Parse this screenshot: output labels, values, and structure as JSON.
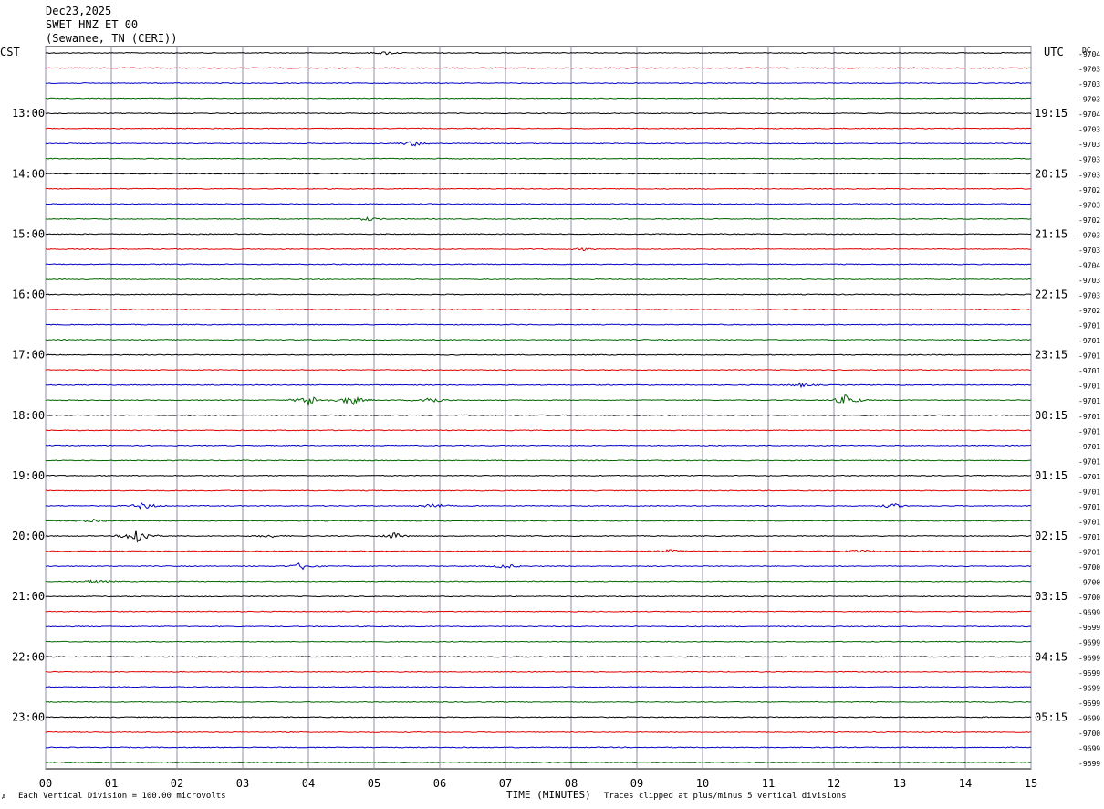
{
  "header": {
    "date": "Dec23,2025",
    "station": "SWET HNZ ET 00",
    "location": "(Sewanee, TN (CERI))"
  },
  "chart_data": {
    "type": "line",
    "left_zone_label": "CST",
    "right_zone_label": "UTC",
    "dc_header": "DC",
    "xlabel": "TIME (MINUTES)",
    "x_ticks": [
      "00",
      "01",
      "02",
      "03",
      "04",
      "05",
      "06",
      "07",
      "08",
      "09",
      "10",
      "11",
      "12",
      "13",
      "14",
      "15"
    ],
    "xlim": [
      0,
      15
    ],
    "grid": true,
    "trace_colors": [
      "#000000",
      "#e00000",
      "#0000c8",
      "#006400"
    ],
    "left_hour_labels": [
      "13:00",
      "14:00",
      "15:00",
      "16:00",
      "17:00",
      "18:00",
      "19:00",
      "20:00",
      "21:00",
      "22:00",
      "23:00"
    ],
    "right_hour_labels": [
      "19:15",
      "20:15",
      "21:15",
      "22:15",
      "23:15",
      "00:15",
      "01:15",
      "02:15",
      "03:15",
      "04:15",
      "05:15"
    ],
    "dc_values": [
      "-9704",
      "-9703",
      "-9703",
      "-9703",
      "-9704",
      "-9703",
      "-9703",
      "-9703",
      "-9703",
      "-9702",
      "-9703",
      "-9702",
      "-9703",
      "-9703",
      "-9704",
      "-9703",
      "-9703",
      "-9702",
      "-9701",
      "-9701",
      "-9701",
      "-9701",
      "-9701",
      "-9701",
      "-9701",
      "-9701",
      "-9701",
      "-9701",
      "-9701",
      "-9701",
      "-9701",
      "-9701",
      "-9701",
      "-9701",
      "-9700",
      "-9700",
      "-9700",
      "-9699",
      "-9699",
      "-9699",
      "-9699",
      "-9699",
      "-9699",
      "-9699",
      "-9699",
      "-9700",
      "-9699",
      "-9699"
    ],
    "events": [
      {
        "trace": 0,
        "minute": 5.2,
        "amp": 0.25
      },
      {
        "trace": 6,
        "minute": 5.6,
        "amp": 0.45
      },
      {
        "trace": 11,
        "minute": 4.9,
        "amp": 0.3
      },
      {
        "trace": 13,
        "minute": 8.2,
        "amp": 0.2
      },
      {
        "trace": 22,
        "minute": 11.5,
        "amp": 0.3
      },
      {
        "trace": 23,
        "minute": 4.0,
        "amp": 1.0
      },
      {
        "trace": 23,
        "minute": 4.65,
        "amp": 0.9
      },
      {
        "trace": 23,
        "minute": 5.85,
        "amp": 0.7
      },
      {
        "trace": 23,
        "minute": 12.2,
        "amp": 1.0
      },
      {
        "trace": 30,
        "minute": 1.5,
        "amp": 0.6
      },
      {
        "trace": 30,
        "minute": 5.9,
        "amp": 0.5
      },
      {
        "trace": 30,
        "minute": 12.9,
        "amp": 0.4
      },
      {
        "trace": 31,
        "minute": 0.75,
        "amp": 0.35
      },
      {
        "trace": 32,
        "minute": 1.4,
        "amp": 1.6
      },
      {
        "trace": 32,
        "minute": 5.3,
        "amp": 0.5
      },
      {
        "trace": 32,
        "minute": 3.4,
        "amp": 0.3
      },
      {
        "trace": 33,
        "minute": 9.5,
        "amp": 0.25
      },
      {
        "trace": 33,
        "minute": 12.4,
        "amp": 0.25
      },
      {
        "trace": 34,
        "minute": 3.9,
        "amp": 0.6
      },
      {
        "trace": 34,
        "minute": 7.0,
        "amp": 0.4
      },
      {
        "trace": 35,
        "minute": 0.75,
        "amp": 0.4
      }
    ]
  },
  "footer": {
    "scale_note": "Each Vertical Division = 100.00 microvolts",
    "clip_note": "Traces clipped at plus/minus 5 vertical divisions",
    "corner_mark": "A"
  }
}
